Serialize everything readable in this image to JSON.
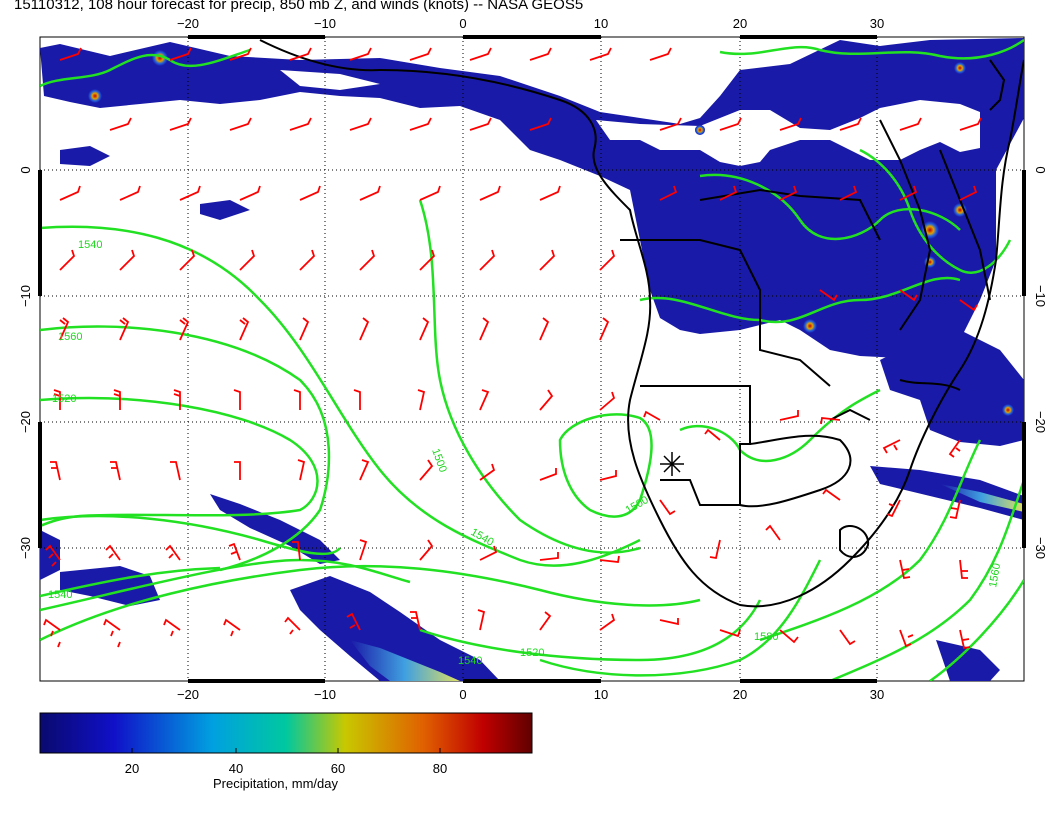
{
  "title": "15110312, 108 hour forecast for precip, 850 mb Z, and winds (knots) -- NASA GEOS5",
  "map": {
    "lon_ticks": [
      "−20",
      "−10",
      "0",
      "10",
      "20",
      "30"
    ],
    "lat_ticks": [
      "0",
      "−10",
      "−20",
      "−30"
    ],
    "contour_labels": [
      "1540",
      "1560",
      "1520",
      "1500",
      "1540",
      "1540",
      "1540",
      "1520",
      "1580",
      "1560",
      "1500"
    ],
    "colors": {
      "precip_low": "#1a1aa8",
      "precip_high": "#8b0000",
      "contour": "#22e022",
      "wind_barb": "#ff0000",
      "coast": "#000000"
    }
  },
  "colorbar": {
    "ticks": [
      "20",
      "40",
      "60",
      "80"
    ],
    "label": "Precipitation, mm/day",
    "range": [
      0,
      100
    ]
  }
}
